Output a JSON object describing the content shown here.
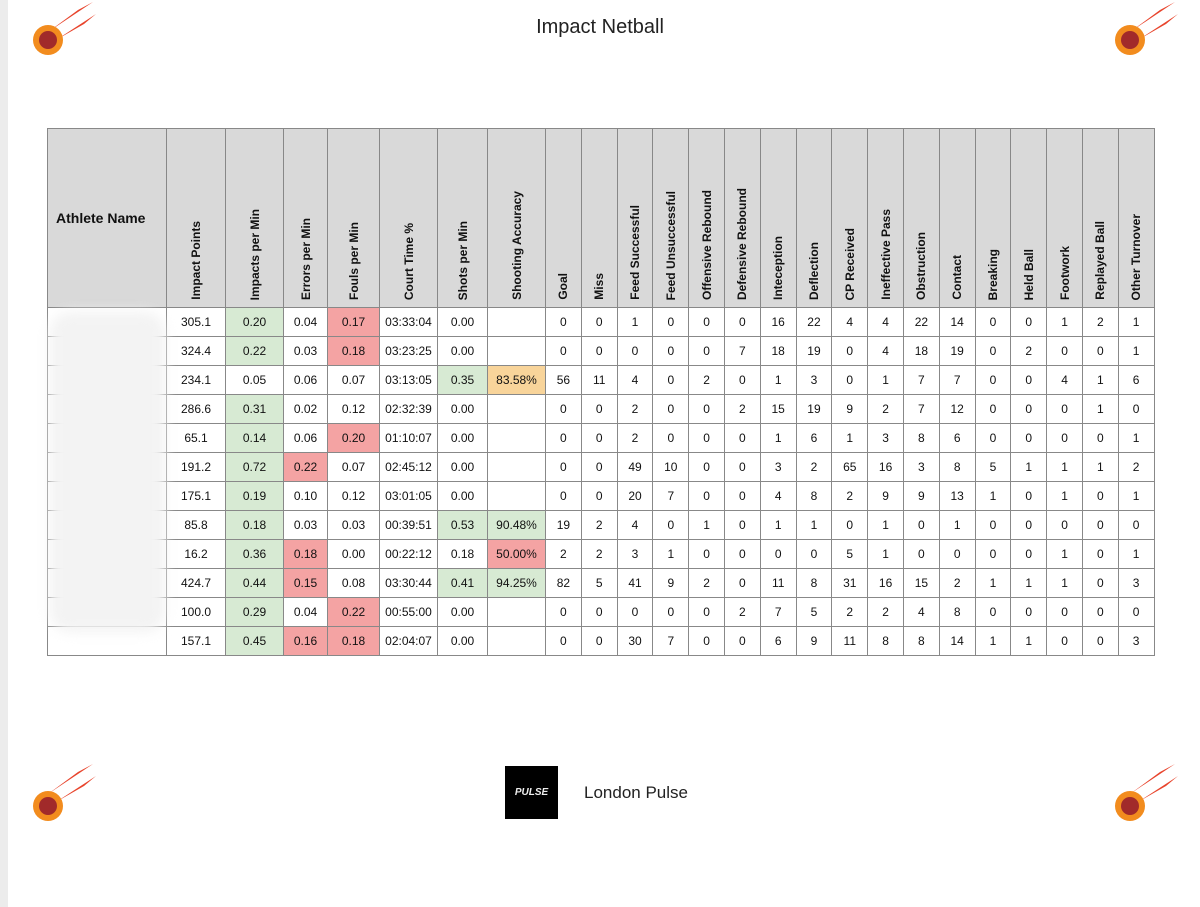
{
  "header": {
    "title": "Impact Netball"
  },
  "table": {
    "name_header": "Athlete Name",
    "columns": [
      "Impact Points",
      "Impacts per Min",
      "Errors per Min",
      "Fouls per Min",
      "Court Time %",
      "Shots per Min",
      "Shooting Accuracy",
      "Goal",
      "Miss",
      "Feed Successful",
      "Feed Unsuccessful",
      "Offensive Rebound",
      "Defensive Rebound",
      "Inteception",
      "Deflection",
      "CP Received",
      "Ineffective Pass",
      "Obstruction",
      "Contact",
      "Breaking",
      "Held Ball",
      "Footwork",
      "Replayed Ball",
      "Other Turnover"
    ],
    "rows": [
      [
        "305.1",
        "0.20",
        "0.04",
        "0.17",
        "03:33:04",
        "0.00",
        null,
        "0",
        "0",
        "1",
        "0",
        "0",
        "0",
        "16",
        "22",
        "4",
        "4",
        "22",
        "14",
        "0",
        "0",
        "1",
        "2",
        "1"
      ],
      [
        "324.4",
        "0.22",
        "0.03",
        "0.18",
        "03:23:25",
        "0.00",
        null,
        "0",
        "0",
        "0",
        "0",
        "0",
        "7",
        "18",
        "19",
        "0",
        "4",
        "18",
        "19",
        "0",
        "2",
        "0",
        "0",
        "1"
      ],
      [
        "234.1",
        "0.05",
        "0.06",
        "0.07",
        "03:13:05",
        "0.35",
        "83.58%",
        "56",
        "11",
        "4",
        "0",
        "2",
        "0",
        "1",
        "3",
        "0",
        "1",
        "7",
        "7",
        "0",
        "0",
        "4",
        "1",
        "6"
      ],
      [
        "286.6",
        "0.31",
        "0.02",
        "0.12",
        "02:32:39",
        "0.00",
        null,
        "0",
        "0",
        "2",
        "0",
        "0",
        "2",
        "15",
        "19",
        "9",
        "2",
        "7",
        "12",
        "0",
        "0",
        "0",
        "1",
        "0"
      ],
      [
        "65.1",
        "0.14",
        "0.06",
        "0.20",
        "01:10:07",
        "0.00",
        null,
        "0",
        "0",
        "2",
        "0",
        "0",
        "0",
        "1",
        "6",
        "1",
        "3",
        "8",
        "6",
        "0",
        "0",
        "0",
        "0",
        "1"
      ],
      [
        "191.2",
        "0.72",
        "0.22",
        "0.07",
        "02:45:12",
        "0.00",
        null,
        "0",
        "0",
        "49",
        "10",
        "0",
        "0",
        "3",
        "2",
        "65",
        "16",
        "3",
        "8",
        "5",
        "1",
        "1",
        "1",
        "2"
      ],
      [
        "175.1",
        "0.19",
        "0.10",
        "0.12",
        "03:01:05",
        "0.00",
        null,
        "0",
        "0",
        "20",
        "7",
        "0",
        "0",
        "4",
        "8",
        "2",
        "9",
        "9",
        "13",
        "1",
        "0",
        "1",
        "0",
        "1"
      ],
      [
        "85.8",
        "0.18",
        "0.03",
        "0.03",
        "00:39:51",
        "0.53",
        "90.48%",
        "19",
        "2",
        "4",
        "0",
        "1",
        "0",
        "1",
        "1",
        "0",
        "1",
        "0",
        "1",
        "0",
        "0",
        "0",
        "0",
        "0"
      ],
      [
        "16.2",
        "0.36",
        "0.18",
        "0.00",
        "00:22:12",
        "0.18",
        "50.00%",
        "2",
        "2",
        "3",
        "1",
        "0",
        "0",
        "0",
        "0",
        "5",
        "1",
        "0",
        "0",
        "0",
        "0",
        "1",
        "0",
        "1"
      ],
      [
        "424.7",
        "0.44",
        "0.15",
        "0.08",
        "03:30:44",
        "0.41",
        "94.25%",
        "82",
        "5",
        "41",
        "9",
        "2",
        "0",
        "11",
        "8",
        "31",
        "16",
        "15",
        "2",
        "1",
        "1",
        "1",
        "0",
        "3"
      ],
      [
        "100.0",
        "0.29",
        "0.04",
        "0.22",
        "00:55:00",
        "0.00",
        null,
        "0",
        "0",
        "0",
        "0",
        "0",
        "2",
        "7",
        "5",
        "2",
        "2",
        "4",
        "8",
        "0",
        "0",
        "0",
        "0",
        "0"
      ],
      [
        "157.1",
        "0.45",
        "0.16",
        "0.18",
        "02:04:07",
        "0.00",
        null,
        "0",
        "0",
        "30",
        "7",
        "0",
        "0",
        "6",
        "9",
        "11",
        "8",
        "8",
        "14",
        "1",
        "1",
        "0",
        "0",
        "3"
      ]
    ],
    "highlights": [
      {
        "color": "#d7ead3",
        "cells": [
          [
            0,
            1
          ],
          [
            1,
            1
          ],
          [
            3,
            1
          ],
          [
            4,
            1
          ],
          [
            5,
            1
          ],
          [
            6,
            1
          ],
          [
            7,
            1
          ],
          [
            8,
            1
          ],
          [
            9,
            1
          ],
          [
            10,
            1
          ],
          [
            11,
            1
          ],
          [
            2,
            5
          ],
          [
            7,
            5
          ],
          [
            9,
            5
          ],
          [
            7,
            6
          ],
          [
            9,
            6
          ]
        ]
      },
      {
        "color": "#f4a3a3",
        "cells": [
          [
            5,
            2
          ],
          [
            8,
            2
          ],
          [
            9,
            2
          ],
          [
            11,
            2
          ],
          [
            0,
            3
          ],
          [
            1,
            3
          ],
          [
            4,
            3
          ],
          [
            10,
            3
          ],
          [
            11,
            3
          ],
          [
            8,
            6
          ]
        ]
      },
      {
        "color": "#f8d49a",
        "cells": [
          [
            2,
            6
          ]
        ]
      }
    ]
  },
  "footer": {
    "logo_text": "PULSE",
    "team": "London Pulse"
  }
}
